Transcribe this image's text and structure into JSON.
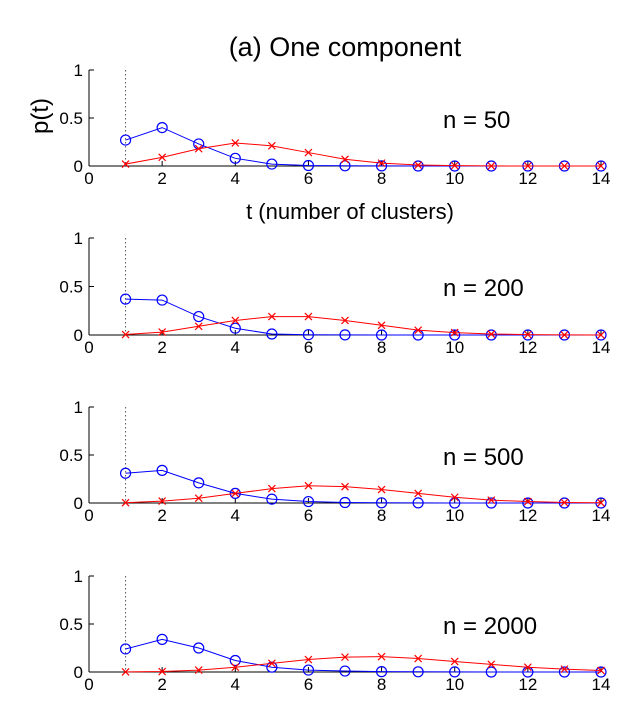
{
  "figure": {
    "title": "(a) One component",
    "ylabel": "p(t)",
    "xlabel": "t  (number of clusters)"
  },
  "colors": {
    "blue": "#0000ff",
    "red": "#ff0000",
    "axis": "#000000",
    "vline": "#555555"
  },
  "chart_data": [
    {
      "type": "line",
      "annotation": "n = 50",
      "xlim": [
        0,
        14
      ],
      "ylim": [
        0,
        1
      ],
      "xticks": [
        0,
        2,
        4,
        6,
        8,
        10,
        12,
        14
      ],
      "yticks": [
        0,
        0.5,
        1
      ],
      "vline_x": 1,
      "x": [
        1,
        2,
        3,
        4,
        5,
        6,
        7,
        8,
        9,
        10,
        11,
        12,
        13,
        14
      ],
      "series": [
        {
          "color": "blue",
          "marker": "circle",
          "values": [
            0.27,
            0.4,
            0.23,
            0.08,
            0.02,
            0.005,
            0.002,
            0.001,
            0,
            0,
            0,
            0,
            0,
            0
          ]
        },
        {
          "color": "red",
          "marker": "x",
          "values": [
            0.02,
            0.09,
            0.18,
            0.24,
            0.21,
            0.14,
            0.07,
            0.03,
            0.01,
            0.004,
            0.001,
            0,
            0,
            0
          ]
        }
      ]
    },
    {
      "type": "line",
      "annotation": "n = 200",
      "xlim": [
        0,
        14
      ],
      "ylim": [
        0,
        1
      ],
      "xticks": [
        0,
        2,
        4,
        6,
        8,
        10,
        12,
        14
      ],
      "yticks": [
        0,
        0.5,
        1
      ],
      "vline_x": 1,
      "x": [
        1,
        2,
        3,
        4,
        5,
        6,
        7,
        8,
        9,
        10,
        11,
        12,
        13,
        14
      ],
      "series": [
        {
          "color": "blue",
          "marker": "circle",
          "values": [
            0.37,
            0.36,
            0.19,
            0.07,
            0.01,
            0.003,
            0.001,
            0,
            0,
            0,
            0,
            0,
            0,
            0
          ]
        },
        {
          "color": "red",
          "marker": "x",
          "values": [
            0.005,
            0.03,
            0.09,
            0.15,
            0.19,
            0.19,
            0.15,
            0.1,
            0.05,
            0.025,
            0.01,
            0.004,
            0.001,
            0
          ]
        }
      ]
    },
    {
      "type": "line",
      "annotation": "n = 500",
      "xlim": [
        0,
        14
      ],
      "ylim": [
        0,
        1
      ],
      "xticks": [
        0,
        2,
        4,
        6,
        8,
        10,
        12,
        14
      ],
      "yticks": [
        0,
        0.5,
        1
      ],
      "vline_x": 1,
      "x": [
        1,
        2,
        3,
        4,
        5,
        6,
        7,
        8,
        9,
        10,
        11,
        12,
        13,
        14
      ],
      "series": [
        {
          "color": "blue",
          "marker": "circle",
          "values": [
            0.31,
            0.34,
            0.21,
            0.1,
            0.04,
            0.015,
            0.005,
            0.002,
            0.001,
            0,
            0,
            0,
            0,
            0
          ]
        },
        {
          "color": "red",
          "marker": "x",
          "values": [
            0.003,
            0.02,
            0.05,
            0.1,
            0.15,
            0.18,
            0.17,
            0.14,
            0.1,
            0.06,
            0.03,
            0.015,
            0.005,
            0.002
          ]
        }
      ]
    },
    {
      "type": "line",
      "annotation": "n = 2000",
      "xlim": [
        0,
        14
      ],
      "ylim": [
        0,
        1
      ],
      "xticks": [
        0,
        2,
        4,
        6,
        8,
        10,
        12,
        14
      ],
      "yticks": [
        0,
        0.5,
        1
      ],
      "vline_x": 1,
      "x": [
        1,
        2,
        3,
        4,
        5,
        6,
        7,
        8,
        9,
        10,
        11,
        12,
        13,
        14
      ],
      "series": [
        {
          "color": "blue",
          "marker": "circle",
          "values": [
            0.24,
            0.34,
            0.25,
            0.12,
            0.05,
            0.02,
            0.01,
            0.004,
            0.002,
            0.001,
            0,
            0,
            0,
            0
          ]
        },
        {
          "color": "red",
          "marker": "x",
          "values": [
            0.001,
            0.005,
            0.02,
            0.05,
            0.09,
            0.13,
            0.155,
            0.16,
            0.14,
            0.11,
            0.08,
            0.05,
            0.03,
            0.015
          ]
        }
      ]
    }
  ]
}
